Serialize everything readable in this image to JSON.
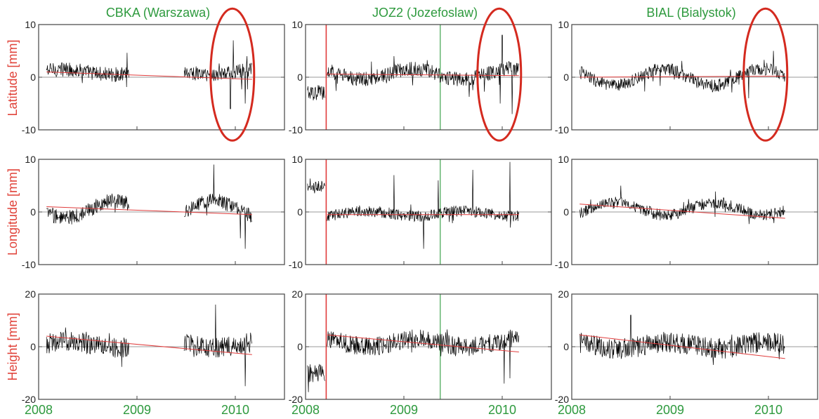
{
  "figure": {
    "stations": [
      {
        "name": "CBKA (Warszawa)"
      },
      {
        "name": "JOZ2 (Jozefoslaw)"
      },
      {
        "name": "BIAL (Bialystok)"
      }
    ],
    "rows": [
      {
        "label": "Latitude [mm]"
      },
      {
        "label": "Longitude [mm]"
      },
      {
        "label": "Height [mm]"
      }
    ],
    "x_ticks": [
      "2008",
      "2009",
      "2010"
    ],
    "colors": {
      "title": "#2e9a3e",
      "row_label": "#e0433a",
      "series": "#000000",
      "trend": "#e03c3c",
      "ellipse": "#d42a1f",
      "step_line": "#e03c3c",
      "marker_line": "#2e9a3e",
      "zero_line": "#777777"
    }
  },
  "chart_data": [
    {
      "type": "line",
      "station": "CBKA (Warszawa)",
      "component": "Latitude",
      "ylabel": "Latitude [mm]",
      "xlim": [
        2008.0,
        2010.5
      ],
      "ylim": [
        -10,
        10
      ],
      "y_ticks": [
        -10,
        0,
        10
      ],
      "grid": false,
      "zero_line": true,
      "series": [
        {
          "name": "",
          "segments": [
            [
              2008.08,
              2008.92
            ],
            [
              2009.48,
              2010.17
            ]
          ],
          "amplitude": 1.4,
          "season": 0.5,
          "level": 1.0,
          "events": [
            [
              2009.95,
              -6.0
            ],
            [
              2010.1,
              -5.0
            ],
            [
              2009.98,
              7.0
            ],
            [
              2010.12,
              4.0
            ]
          ]
        }
      ],
      "trend": [
        [
          2008.08,
          1.0
        ],
        [
          2010.17,
          -0.4
        ]
      ],
      "vlines": [],
      "annotations": [
        {
          "shape": "ellipse",
          "center": [
            2009.97,
            0.5
          ]
        }
      ]
    },
    {
      "type": "line",
      "station": "JOZ2 (Jozefoslaw)",
      "component": "Latitude",
      "ylabel": "Latitude [mm]",
      "xlim": [
        2008.0,
        2010.5
      ],
      "ylim": [
        -10,
        10
      ],
      "y_ticks": [
        -10,
        0,
        10
      ],
      "grid": false,
      "zero_line": true,
      "series": [
        {
          "name": "",
          "segments": [
            [
              2008.02,
              2008.2
            ],
            [
              2008.22,
              2010.17
            ]
          ],
          "amplitude": 1.4,
          "season": 1.0,
          "level": 0.6,
          "offset_before": -3.0,
          "events": [
            [
              2009.98,
              -5.0
            ],
            [
              2010.1,
              -7.0
            ],
            [
              2010.0,
              8.0
            ],
            [
              2008.9,
              4.0
            ]
          ]
        }
      ],
      "trend": [
        [
          2008.22,
          0.6
        ],
        [
          2010.17,
          0.3
        ]
      ],
      "vlines": [
        {
          "x": 2008.21,
          "kind": "step"
        },
        {
          "x": 2009.37,
          "kind": "marker"
        }
      ],
      "annotations": [
        {
          "shape": "ellipse",
          "center": [
            2009.97,
            0.5
          ]
        }
      ]
    },
    {
      "type": "line",
      "station": "BIAL (Bialystok)",
      "component": "Latitude",
      "ylabel": "Latitude [mm]",
      "xlim": [
        2008.0,
        2010.5
      ],
      "ylim": [
        -10,
        10
      ],
      "y_ticks": [
        -10,
        0,
        10
      ],
      "grid": false,
      "zero_line": true,
      "series": [
        {
          "name": "",
          "segments": [
            [
              2008.08,
              2010.17
            ]
          ],
          "amplitude": 1.2,
          "season": 1.6,
          "level": 0.0,
          "events": [
            [
              2008.1,
              2.0
            ],
            [
              2010.05,
              5.0
            ],
            [
              2009.8,
              -4.0
            ]
          ]
        }
      ],
      "trend": [
        [
          2008.08,
          0.0
        ],
        [
          2010.17,
          0.2
        ]
      ],
      "vlines": [],
      "annotations": [
        {
          "shape": "ellipse",
          "center": [
            2009.97,
            0.5
          ]
        }
      ]
    },
    {
      "type": "line",
      "station": "CBKA (Warszawa)",
      "component": "Longitude",
      "ylabel": "Longitude [mm]",
      "xlim": [
        2008.0,
        2010.5
      ],
      "ylim": [
        -10,
        10
      ],
      "y_ticks": [
        -10,
        0,
        10
      ],
      "grid": false,
      "zero_line": true,
      "series": [
        {
          "name": "",
          "segments": [
            [
              2008.08,
              2008.92
            ],
            [
              2009.48,
              2010.17
            ]
          ],
          "amplitude": 1.4,
          "season": 1.6,
          "level": 0.5,
          "events": [
            [
              2009.78,
              9.0
            ],
            [
              2010.1,
              -7.0
            ],
            [
              2010.05,
              -5.0
            ]
          ]
        }
      ],
      "trend": [
        [
          2008.08,
          1.0
        ],
        [
          2010.17,
          -0.5
        ]
      ],
      "vlines": [],
      "annotations": []
    },
    {
      "type": "line",
      "station": "JOZ2 (Jozefoslaw)",
      "component": "Longitude",
      "ylabel": "Longitude [mm]",
      "xlim": [
        2008.0,
        2010.5
      ],
      "ylim": [
        -10,
        10
      ],
      "y_ticks": [
        -10,
        0,
        10
      ],
      "grid": false,
      "zero_line": true,
      "series": [
        {
          "name": "",
          "segments": [
            [
              2008.02,
              2008.2
            ],
            [
              2008.22,
              2010.17
            ]
          ],
          "amplitude": 1.1,
          "season": 0.5,
          "level": -0.3,
          "offset_before": 4.7,
          "events": [
            [
              2008.9,
              7.0
            ],
            [
              2009.35,
              6.0
            ],
            [
              2009.7,
              8.0
            ],
            [
              2010.08,
              9.5
            ],
            [
              2009.2,
              -7.0
            ]
          ]
        }
      ],
      "trend": [
        [
          2008.22,
          -0.5
        ],
        [
          2010.17,
          -0.5
        ]
      ],
      "vlines": [
        {
          "x": 2008.21,
          "kind": "step"
        },
        {
          "x": 2009.37,
          "kind": "marker"
        }
      ],
      "annotations": []
    },
    {
      "type": "line",
      "station": "BIAL (Bialystok)",
      "component": "Longitude",
      "ylabel": "Longitude [mm]",
      "xlim": [
        2008.0,
        2010.5
      ],
      "ylim": [
        -10,
        10
      ],
      "y_ticks": [
        -10,
        0,
        10
      ],
      "grid": false,
      "zero_line": true,
      "series": [
        {
          "name": "",
          "segments": [
            [
              2008.08,
              2010.17
            ]
          ],
          "amplitude": 1.1,
          "season": 1.2,
          "level": 0.6,
          "events": [
            [
              2008.5,
              5.0
            ]
          ]
        }
      ],
      "trend": [
        [
          2008.08,
          1.5
        ],
        [
          2010.17,
          -1.2
        ]
      ],
      "vlines": [],
      "annotations": []
    },
    {
      "type": "line",
      "station": "CBKA (Warszawa)",
      "component": "Height",
      "ylabel": "Height [mm]",
      "xlim": [
        2008.0,
        2010.5
      ],
      "ylim": [
        -20,
        20
      ],
      "y_ticks": [
        -20,
        0,
        20
      ],
      "grid": false,
      "zero_line": true,
      "series": [
        {
          "name": "",
          "segments": [
            [
              2008.08,
              2008.92
            ],
            [
              2009.48,
              2010.17
            ]
          ],
          "amplitude": 3.8,
          "season": 1.2,
          "level": 0.8,
          "events": [
            [
              2009.8,
              16.0
            ],
            [
              2010.1,
              -15.0
            ]
          ]
        }
      ],
      "trend": [
        [
          2008.08,
          4.0
        ],
        [
          2010.17,
          -3.0
        ]
      ],
      "vlines": [],
      "annotations": []
    },
    {
      "type": "line",
      "station": "JOZ2 (Jozefoslaw)",
      "component": "Height",
      "ylabel": "Height [mm]",
      "xlim": [
        2008.0,
        2010.5
      ],
      "ylim": [
        -20,
        20
      ],
      "y_ticks": [
        -20,
        0,
        20
      ],
      "grid": false,
      "zero_line": true,
      "series": [
        {
          "name": "",
          "segments": [
            [
              2008.02,
              2008.2
            ],
            [
              2008.22,
              2010.17
            ]
          ],
          "amplitude": 3.6,
          "season": 1.5,
          "level": 1.5,
          "offset_before": -10.0,
          "events": [
            [
              2010.02,
              -14.0
            ],
            [
              2010.08,
              -12.0
            ]
          ]
        }
      ],
      "trend": [
        [
          2008.22,
          4.5
        ],
        [
          2010.17,
          -2.0
        ]
      ],
      "vlines": [
        {
          "x": 2008.21,
          "kind": "step"
        },
        {
          "x": 2009.37,
          "kind": "marker"
        }
      ],
      "annotations": []
    },
    {
      "type": "line",
      "station": "BIAL (Bialystok)",
      "component": "Height",
      "ylabel": "Height [mm]",
      "xlim": [
        2008.0,
        2010.5
      ],
      "ylim": [
        -20,
        20
      ],
      "y_ticks": [
        -20,
        0,
        20
      ],
      "grid": false,
      "zero_line": true,
      "series": [
        {
          "name": "",
          "segments": [
            [
              2008.08,
              2010.17
            ]
          ],
          "amplitude": 4.0,
          "season": 1.2,
          "level": 0.5,
          "events": [
            [
              2008.6,
              12.0
            ]
          ]
        }
      ],
      "trend": [
        [
          2008.08,
          4.5
        ],
        [
          2010.17,
          -4.5
        ]
      ],
      "vlines": [],
      "annotations": []
    }
  ]
}
